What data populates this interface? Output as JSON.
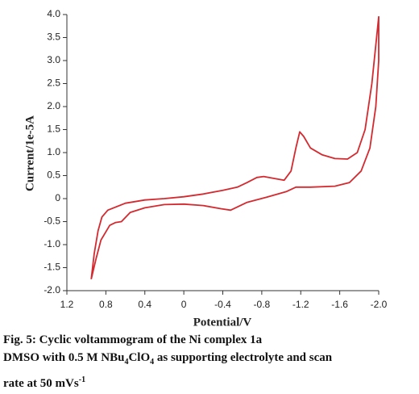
{
  "chart_data": {
    "type": "line",
    "xlabel": "Potential/V",
    "ylabel": "Current/1e-5A",
    "caption": [
      "Fig. 5: Cyclic voltammogram of the Ni complex 1a",
      "DMSO with 0.5 M NBu",
      "4",
      "ClO",
      "4",
      "as supporting electrolyte and scan",
      "rate at 50 mVs",
      "-1"
    ],
    "xlim": [
      1.2,
      -2.0
    ],
    "xticks": [
      1.2,
      0.8,
      0.4,
      0,
      -0.4,
      -0.8,
      -1.2,
      -1.6,
      {
        "value": -2,
        "label": "-2.0"
      }
    ],
    "ylim": [
      -2,
      4
    ],
    "yticks": [
      {
        "value": 4,
        "label": "4.0"
      },
      3.5,
      {
        "value": 3,
        "label": "3.0"
      },
      2.5,
      {
        "value": 2,
        "label": "2.0"
      },
      1.5,
      {
        "value": 1,
        "label": "1.0"
      },
      0.5,
      0,
      -0.5,
      {
        "value": -1,
        "label": "-1.0"
      },
      -1.5,
      {
        "value": -2,
        "label": "-2.0"
      }
    ],
    "x": [
      0.95,
      0.92,
      0.88,
      0.84,
      0.78,
      0.6,
      0.4,
      0.2,
      0,
      -0.2,
      -0.4,
      -0.55,
      -0.65,
      -0.75,
      -0.82,
      -0.92,
      -1.03,
      -1.1,
      -1.15,
      -1.19,
      -1.23,
      -1.3,
      -1.42,
      -1.55,
      -1.68,
      -1.78,
      -1.86,
      -1.93,
      -2.0,
      -2.0,
      -1.97,
      -1.91,
      -1.82,
      -1.7,
      -1.55,
      -1.3,
      -1.15,
      -1.05,
      -0.85,
      -0.65,
      -0.48,
      -0.38,
      -0.2,
      0,
      0.2,
      0.4,
      0.55,
      0.64,
      0.7,
      0.76,
      0.85,
      0.9,
      0.95
    ],
    "series": [
      {
        "color": "#d42a2f",
        "values": [
          -1.75,
          -1.2,
          -0.7,
          -0.4,
          -0.25,
          -0.1,
          -0.03,
          0,
          0.04,
          0.1,
          0.18,
          0.25,
          0.35,
          0.46,
          0.48,
          0.44,
          0.4,
          0.6,
          1.1,
          1.45,
          1.35,
          1.1,
          0.95,
          0.87,
          0.86,
          1.0,
          1.5,
          2.5,
          3.95,
          3.0,
          2.0,
          1.1,
          0.6,
          0.35,
          0.27,
          0.25,
          0.25,
          0.15,
          0.03,
          -0.08,
          -0.25,
          -0.22,
          -0.15,
          -0.12,
          -0.13,
          -0.2,
          -0.3,
          -0.5,
          -0.52,
          -0.58,
          -0.9,
          -1.3,
          -1.75
        ]
      }
    ]
  }
}
